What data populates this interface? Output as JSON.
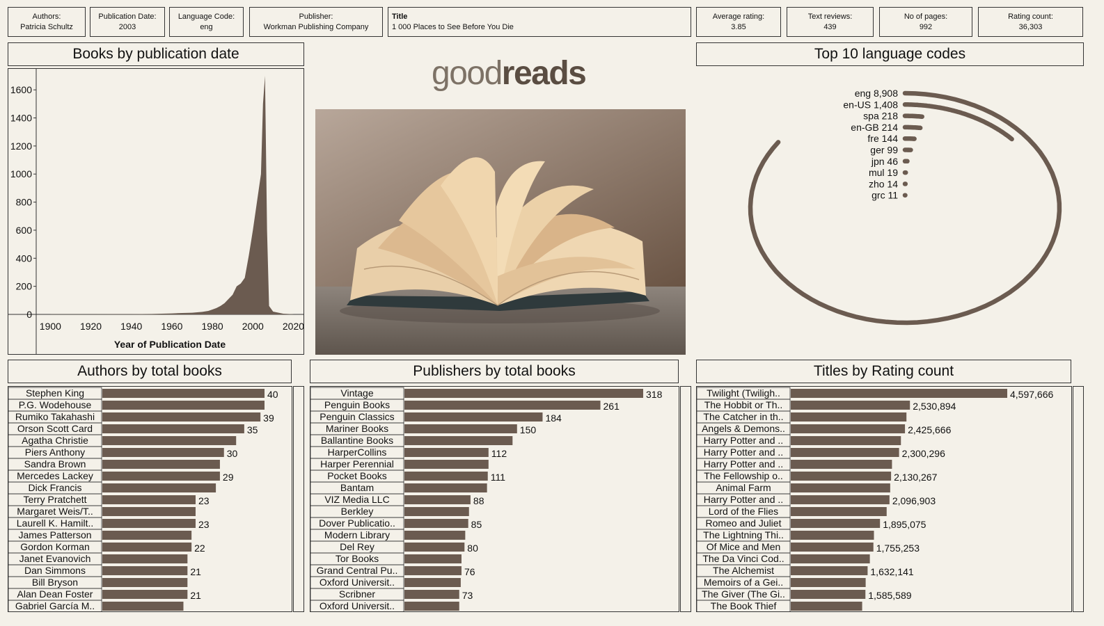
{
  "kpis": {
    "authors": {
      "label": "Authors:",
      "value": "Patricia Schultz"
    },
    "pub_date": {
      "label": "Publication Date:",
      "value": "2003"
    },
    "lang": {
      "label": "Language Code:",
      "value": "eng"
    },
    "publisher": {
      "label": "Publisher:",
      "value": "Workman Publishing Company"
    },
    "title": {
      "label": "Title",
      "value": "1 000 Places to See Before You Die"
    },
    "avg_rating": {
      "label": "Average rating:",
      "value": "3.85"
    },
    "text_reviews": {
      "label": "Text reviews:",
      "value": "439"
    },
    "pages": {
      "label": "No of pages:",
      "value": "992"
    },
    "rating_count": {
      "label": "Rating count:",
      "value": "36,303"
    }
  },
  "headers": {
    "pub": "Books by publication date",
    "lang": "Top 10 language codes",
    "authors": "Authors by total books",
    "publishers": "Publishers by total books",
    "titles": "Titles by Rating count"
  },
  "logo": {
    "part1": "good",
    "part2": "reads"
  },
  "colors": {
    "bar": "#6b5b50",
    "area": "#6b5b50",
    "background": "#f4f1e9",
    "border": "#333333"
  },
  "chart_data": [
    {
      "type": "area",
      "xlabel": "Year of Publication Date",
      "ylabel": "",
      "xlim": [
        1893,
        2025
      ],
      "ylim": [
        0,
        1700
      ],
      "xticks": [
        1900,
        1920,
        1940,
        1960,
        1980,
        2000,
        2020
      ],
      "yticks": [
        0,
        200,
        400,
        600,
        800,
        1000,
        1200,
        1400,
        1600
      ],
      "x": [
        1900,
        1910,
        1920,
        1930,
        1940,
        1950,
        1955,
        1960,
        1965,
        1970,
        1975,
        1978,
        1980,
        1982,
        1984,
        1986,
        1988,
        1990,
        1992,
        1994,
        1996,
        1998,
        2000,
        2002,
        2004,
        2005,
        2006,
        2007,
        2008,
        2010,
        2015,
        2020
      ],
      "y": [
        1,
        1,
        1,
        2,
        2,
        3,
        5,
        7,
        10,
        12,
        18,
        25,
        35,
        45,
        60,
        80,
        110,
        140,
        200,
        220,
        260,
        420,
        600,
        800,
        1000,
        1500,
        1700,
        600,
        60,
        20,
        5,
        1
      ]
    },
    {
      "type": "bar",
      "title": "Top 10 language codes",
      "categories": [
        "eng",
        "en-US",
        "spa",
        "en-GB",
        "fre",
        "ger",
        "jpn",
        "mul",
        "zho",
        "grc"
      ],
      "values": [
        8908,
        1408,
        218,
        214,
        144,
        99,
        46,
        19,
        14,
        11
      ],
      "labels": [
        "eng 8,908",
        "en-US 1,408",
        "spa 218",
        "en-GB 214",
        "fre 144",
        "ger 99",
        "jpn 46",
        "mul 19",
        "zho 14",
        "grc 11"
      ]
    },
    {
      "type": "bar",
      "title": "Authors by total books",
      "categories": [
        "Stephen King",
        "P.G. Wodehouse",
        "Rumiko Takahashi",
        "Orson Scott Card",
        "Agatha Christie",
        "Piers Anthony",
        "Sandra Brown",
        "Mercedes Lackey",
        "Dick Francis",
        "Terry Pratchett",
        "Margaret Weis/T..",
        "Laurell K. Hamilt..",
        "James Patterson",
        "Gordon Korman",
        "Janet Evanovich",
        "Dan Simmons",
        "Bill Bryson",
        "Alan Dean Foster",
        "Gabriel García M.."
      ],
      "values": [
        40,
        40,
        39,
        35,
        33,
        30,
        29,
        29,
        28,
        23,
        23,
        23,
        22,
        22,
        21,
        21,
        21,
        21,
        20
      ],
      "labels": [
        "40",
        "",
        "39",
        "35",
        "",
        "30",
        "",
        "29",
        "",
        "23",
        "",
        "23",
        "",
        "22",
        "",
        "21",
        "",
        "21",
        ""
      ]
    },
    {
      "type": "bar",
      "title": "Publishers by total books",
      "categories": [
        "Vintage",
        "Penguin Books",
        "Penguin Classics",
        "Mariner Books",
        "Ballantine Books",
        "HarperCollins",
        "Harper Perennial",
        "Pocket Books",
        "Bantam",
        "VIZ Media LLC",
        "Berkley",
        "Dover Publicatio..",
        "Modern Library",
        "Del Rey",
        "Tor Books",
        "Grand Central Pu..",
        "Oxford Universit..",
        "Scribner",
        "Oxford Universit.."
      ],
      "values": [
        318,
        261,
        184,
        150,
        144,
        112,
        112,
        111,
        110,
        88,
        86,
        85,
        81,
        80,
        76,
        76,
        75,
        73,
        73
      ],
      "labels": [
        "318",
        "261",
        "184",
        "150",
        "",
        "112",
        "",
        "111",
        "",
        "88",
        "",
        "85",
        "",
        "80",
        "",
        "76",
        "",
        "73",
        ""
      ]
    },
    {
      "type": "bar",
      "title": "Titles by Rating count",
      "categories": [
        "Twilight (Twiligh..",
        "The Hobbit  or Th..",
        "The Catcher in th..",
        "Angels & Demons..",
        "Harry Potter and ..",
        "Harry Potter and ..",
        "Harry Potter and ..",
        "The Fellowship o..",
        "Animal Farm",
        "Harry Potter and ..",
        "Lord of the Flies",
        "Romeo and Juliet",
        "The Lightning Thi..",
        "Of Mice and Men",
        "The Da Vinci Cod..",
        "The Alchemist",
        "Memoirs of a Gei..",
        "The Giver (The Gi..",
        "The Book Thief"
      ],
      "values": [
        4597666,
        2530894,
        2457092,
        2425666,
        2339585,
        2300296,
        2149872,
        2130267,
        2111750,
        2096903,
        2036679,
        1895075,
        1766725,
        1755253,
        1679582,
        1632141,
        1590766,
        1585589,
        1516367
      ],
      "labels": [
        "4,597,666",
        "2,530,894",
        "",
        "2,425,666",
        "",
        "2,300,296",
        "",
        "2,130,267",
        "",
        "2,096,903",
        "",
        "1,895,075",
        "",
        "1,755,253",
        "",
        "1,632,141",
        "",
        "1,585,589",
        ""
      ]
    }
  ]
}
